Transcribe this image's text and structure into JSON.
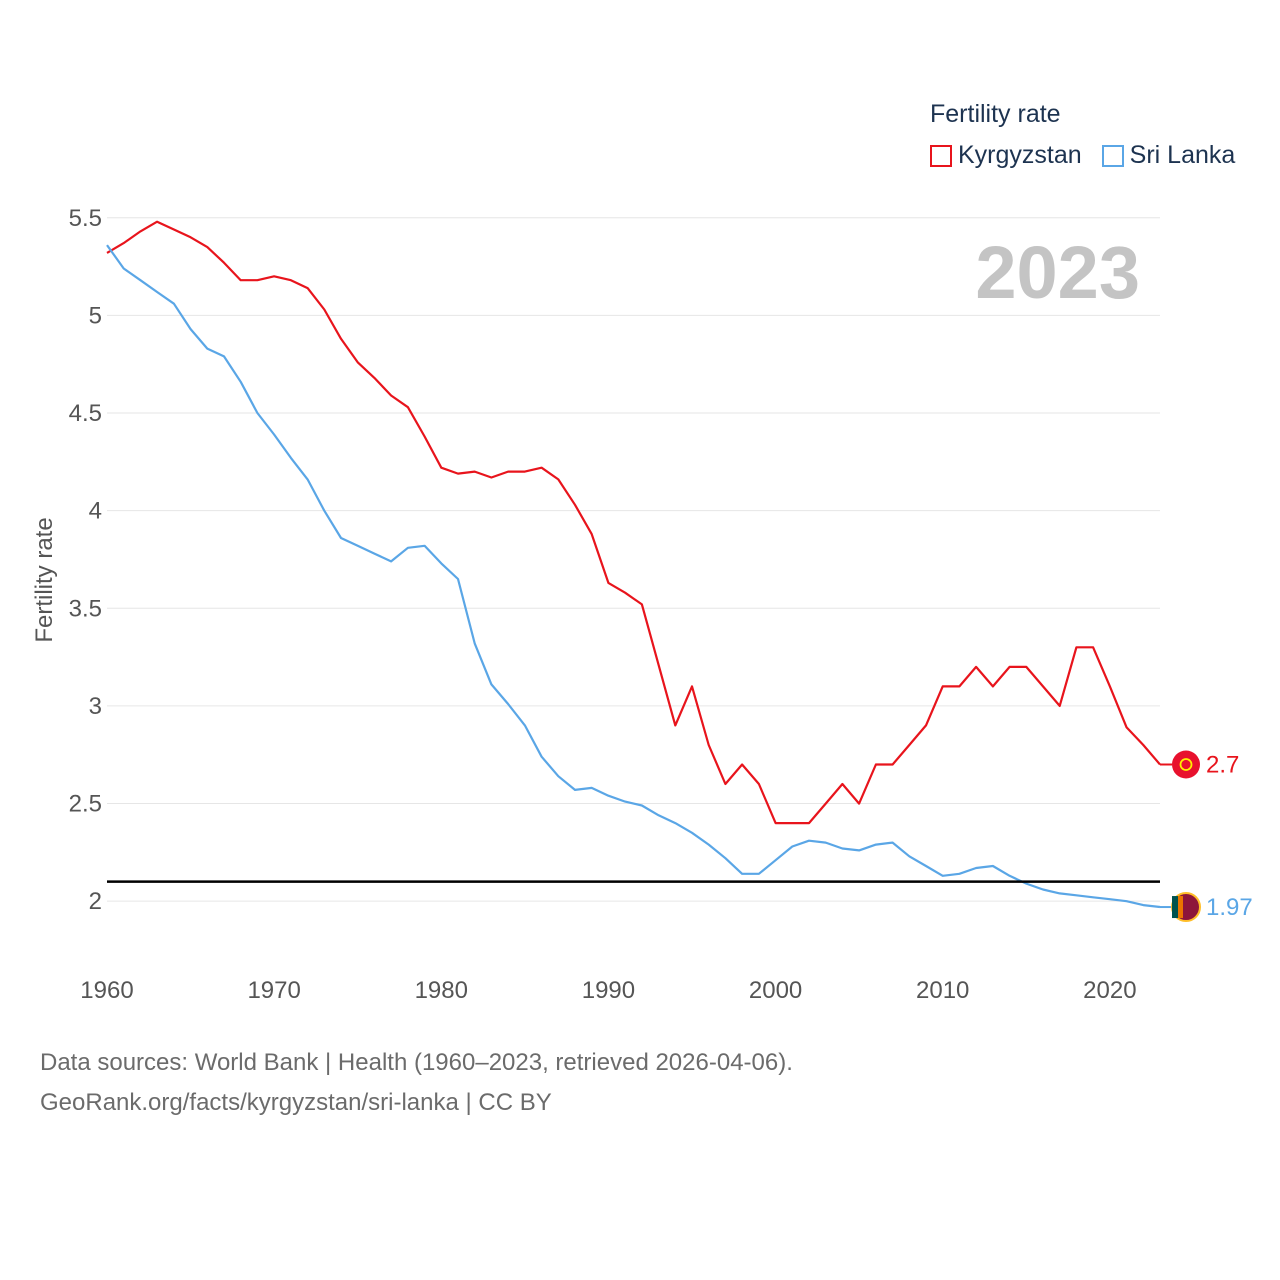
{
  "legend": {
    "title": "Fertility rate",
    "items": [
      {
        "label": "Kyrgyzstan",
        "color": "#e8141c"
      },
      {
        "label": "Sri Lanka",
        "color": "#5aa6e6"
      }
    ]
  },
  "footer": {
    "line1": "Data sources: World Bank | Health (1960–2023, retrieved 2026-04-06).",
    "line2": "GeoRank.org/facts/kyrgyzstan/sri-lanka | CC BY"
  },
  "chart_data": {
    "type": "line",
    "year_watermark": "2023",
    "ylabel": "Fertility rate",
    "xlim": [
      1960,
      2023
    ],
    "ylim": [
      1.75,
      5.55
    ],
    "xticks": [
      1960,
      1970,
      1980,
      1990,
      2000,
      2010,
      2020
    ],
    "yticks": [
      2,
      2.5,
      3,
      3.5,
      4,
      4.5,
      5,
      5.5
    ],
    "reference_line": 2.1,
    "x": [
      1960,
      1961,
      1962,
      1963,
      1964,
      1965,
      1966,
      1967,
      1968,
      1969,
      1970,
      1971,
      1972,
      1973,
      1974,
      1975,
      1976,
      1977,
      1978,
      1979,
      1980,
      1981,
      1982,
      1983,
      1984,
      1985,
      1986,
      1987,
      1988,
      1989,
      1990,
      1991,
      1992,
      1993,
      1994,
      1995,
      1996,
      1997,
      1998,
      1999,
      2000,
      2001,
      2002,
      2003,
      2004,
      2005,
      2006,
      2007,
      2008,
      2009,
      2010,
      2011,
      2012,
      2013,
      2014,
      2015,
      2016,
      2017,
      2018,
      2019,
      2020,
      2021,
      2022,
      2023
    ],
    "series": [
      {
        "name": "Kyrgyzstan",
        "color": "#e8141c",
        "end_label": "2.7",
        "values": [
          5.32,
          5.37,
          5.43,
          5.48,
          5.44,
          5.4,
          5.35,
          5.27,
          5.18,
          5.18,
          5.2,
          5.18,
          5.14,
          5.03,
          4.88,
          4.76,
          4.68,
          4.59,
          4.53,
          4.38,
          4.22,
          4.19,
          4.2,
          4.17,
          4.2,
          4.2,
          4.22,
          4.16,
          4.03,
          3.88,
          3.63,
          3.58,
          3.52,
          3.21,
          2.9,
          3.1,
          2.8,
          2.6,
          2.7,
          2.6,
          2.4,
          2.4,
          2.4,
          2.5,
          2.6,
          2.5,
          2.7,
          2.7,
          2.8,
          2.9,
          3.1,
          3.1,
          3.2,
          3.1,
          3.2,
          3.2,
          3.1,
          3.0,
          3.3,
          3.3,
          3.1,
          2.89,
          2.8,
          2.7
        ]
      },
      {
        "name": "Sri Lanka",
        "color": "#5aa6e6",
        "end_label": "1.97",
        "values": [
          5.36,
          5.24,
          5.18,
          5.12,
          5.06,
          4.93,
          4.83,
          4.79,
          4.66,
          4.5,
          4.39,
          4.27,
          4.16,
          4.0,
          3.86,
          3.82,
          3.78,
          3.74,
          3.81,
          3.82,
          3.73,
          3.65,
          3.32,
          3.11,
          3.01,
          2.9,
          2.74,
          2.64,
          2.57,
          2.58,
          2.54,
          2.51,
          2.49,
          2.44,
          2.4,
          2.35,
          2.29,
          2.22,
          2.14,
          2.14,
          2.21,
          2.28,
          2.31,
          2.3,
          2.27,
          2.26,
          2.29,
          2.3,
          2.23,
          2.18,
          2.13,
          2.14,
          2.17,
          2.18,
          2.13,
          2.09,
          2.06,
          2.04,
          2.03,
          2.02,
          2.01,
          2.0,
          1.98,
          1.97
        ]
      }
    ]
  }
}
